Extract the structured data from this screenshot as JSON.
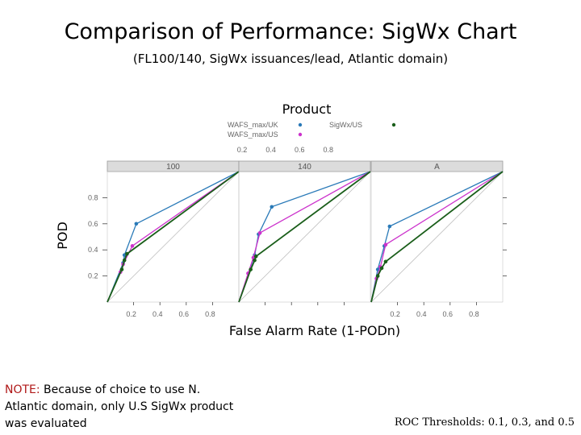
{
  "title": "Comparison of Performance: SigWx Chart",
  "subtitle": "(FL100/140, SigWx issuances/lead, Atlantic domain)",
  "note": {
    "key": "NOTE:",
    "text": " Because of choice to use N. Atlantic domain, only U.S SigWx product was evaluated"
  },
  "thresholds": "ROC Thresholds: 0.1, 0.3, and 0.5",
  "chart_data": {
    "type": "line",
    "xlabel": "False Alarm Rate (1-PODn)",
    "ylabel": "POD",
    "legend_title": "Product",
    "legend_position": "top",
    "xlim": [
      0,
      1
    ],
    "ylim": [
      0,
      1
    ],
    "x_ticks": [
      "0.2",
      "0.4",
      "0.6",
      "0.8"
    ],
    "y_ticks": [
      "0.2",
      "0.4",
      "0.6",
      "0.8"
    ],
    "diagonal_reference": true,
    "panels": [
      {
        "label": "100",
        "series": [
          {
            "name": "WAFS_max/UK",
            "color": "#2a7ab8",
            "points": [
              [
                0,
                0
              ],
              [
                0.12,
                0.3
              ],
              [
                0.13,
                0.36
              ],
              [
                0.22,
                0.6
              ],
              [
                1,
                1
              ]
            ]
          },
          {
            "name": "WAFS_max/US",
            "color": "#cc33cc",
            "points": [
              [
                0,
                0
              ],
              [
                0.1,
                0.23
              ],
              [
                0.12,
                0.29
              ],
              [
                0.19,
                0.43
              ],
              [
                1,
                1
              ]
            ]
          },
          {
            "name": "SigWx/US",
            "color": "#1a5e1a",
            "points": [
              [
                0,
                0
              ],
              [
                0.11,
                0.25
              ],
              [
                0.13,
                0.32
              ],
              [
                0.15,
                0.37
              ],
              [
                1,
                1
              ]
            ]
          }
        ]
      },
      {
        "label": "140",
        "series": [
          {
            "name": "WAFS_max/UK",
            "color": "#2a7ab8",
            "points": [
              [
                0,
                0
              ],
              [
                0.12,
                0.36
              ],
              [
                0.15,
                0.52
              ],
              [
                0.25,
                0.73
              ],
              [
                1,
                1
              ]
            ]
          },
          {
            "name": "WAFS_max/US",
            "color": "#cc33cc",
            "points": [
              [
                0,
                0
              ],
              [
                0.07,
                0.22
              ],
              [
                0.11,
                0.34
              ],
              [
                0.16,
                0.53
              ],
              [
                1,
                1
              ]
            ]
          },
          {
            "name": "SigWx/US",
            "color": "#1a5e1a",
            "points": [
              [
                0,
                0
              ],
              [
                0.09,
                0.25
              ],
              [
                0.12,
                0.32
              ],
              [
                0.13,
                0.35
              ],
              [
                1,
                1
              ]
            ]
          }
        ]
      },
      {
        "label": "A",
        "series": [
          {
            "name": "WAFS_max/UK",
            "color": "#2a7ab8",
            "points": [
              [
                0,
                0
              ],
              [
                0.05,
                0.25
              ],
              [
                0.1,
                0.43
              ],
              [
                0.14,
                0.58
              ],
              [
                1,
                1
              ]
            ]
          },
          {
            "name": "WAFS_max/US",
            "color": "#cc33cc",
            "points": [
              [
                0,
                0
              ],
              [
                0.04,
                0.18
              ],
              [
                0.07,
                0.27
              ],
              [
                0.11,
                0.44
              ],
              [
                1,
                1
              ]
            ]
          },
          {
            "name": "SigWx/US",
            "color": "#1a5e1a",
            "points": [
              [
                0,
                0
              ],
              [
                0.05,
                0.2
              ],
              [
                0.08,
                0.26
              ],
              [
                0.11,
                0.31
              ],
              [
                1,
                1
              ]
            ]
          }
        ]
      }
    ]
  }
}
